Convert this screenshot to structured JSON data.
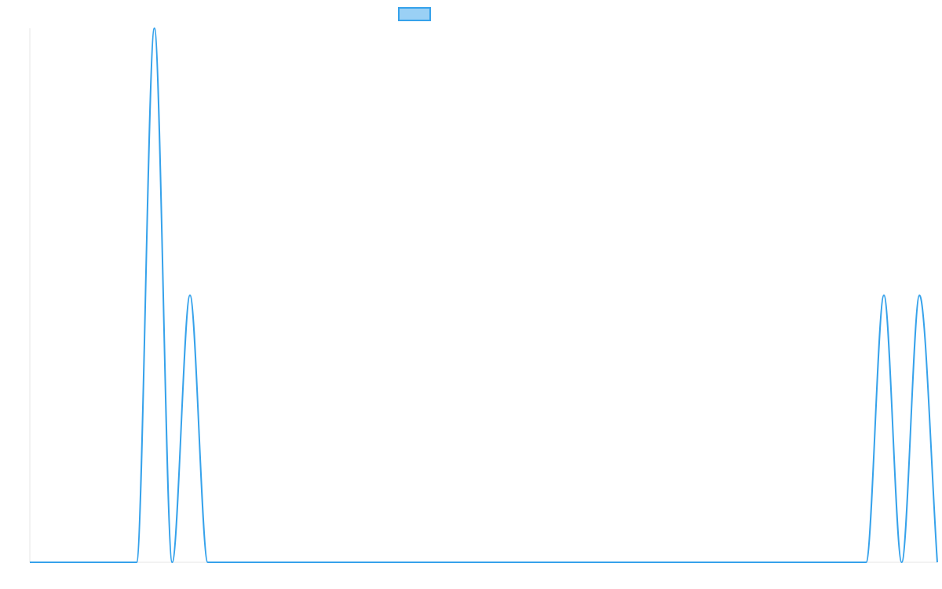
{
  "chart_data": {
    "type": "line",
    "categories": [
      null,
      null,
      null,
      null,
      null,
      null,
      null,
      null,
      null,
      null,
      null,
      null,
      null,
      null,
      null,
      null,
      null,
      null,
      null,
      null,
      null,
      null,
      null,
      null,
      null,
      null,
      null,
      null,
      null,
      null,
      null,
      null,
      null,
      null,
      null,
      null,
      null,
      null,
      null,
      null,
      null,
      null,
      null,
      null,
      null,
      null,
      null,
      null,
      null,
      null,
      null,
      null
    ],
    "series": [
      {
        "color": "#36a2eb",
        "fill": "#9ad0f5",
        "values": [
          0,
          0,
          0,
          0,
          0,
          0,
          0,
          2,
          0,
          1,
          0,
          0,
          0,
          0,
          0,
          0,
          0,
          0,
          0,
          0,
          0,
          0,
          0,
          0,
          0,
          0,
          0,
          0,
          0,
          0,
          0,
          0,
          0,
          0,
          0,
          0,
          0,
          0,
          0,
          0,
          0,
          0,
          0,
          0,
          0,
          0,
          0,
          0,
          1,
          0,
          1,
          0
        ]
      }
    ],
    "ylim": [
      0,
      2
    ],
    "legend": "top"
  }
}
